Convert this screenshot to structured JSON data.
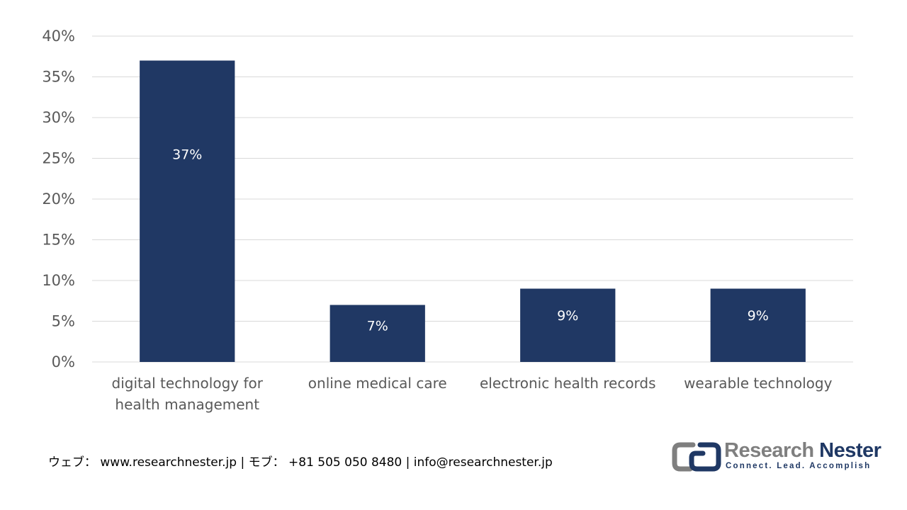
{
  "chart_data": {
    "type": "bar",
    "categories": [
      [
        "digital technology for",
        "health management"
      ],
      [
        "online medical care"
      ],
      [
        "electronic health records"
      ],
      [
        "wearable technology"
      ]
    ],
    "values": [
      37,
      7,
      9,
      9
    ],
    "data_labels": [
      "37%",
      "7%",
      "9%",
      "9%"
    ],
    "ylim": [
      0,
      40
    ],
    "yticks": [
      0,
      5,
      10,
      15,
      20,
      25,
      30,
      35,
      40
    ],
    "ytick_labels": [
      "0%",
      "5%",
      "10%",
      "15%",
      "20%",
      "25%",
      "30%",
      "35%",
      "40%"
    ],
    "grid": true,
    "bar_color": "#203864",
    "grid_color": "#d9d9d9"
  },
  "footer": {
    "contact": "ウェブ： www.researchnester.jp | モブ： +81 505 050 8480 | info@researchnester.jp"
  },
  "logo": {
    "word1": "Research",
    "word2": "Nester",
    "tagline": "Connect. Lead. Accomplish",
    "icon": "research-nester-logo-icon"
  }
}
